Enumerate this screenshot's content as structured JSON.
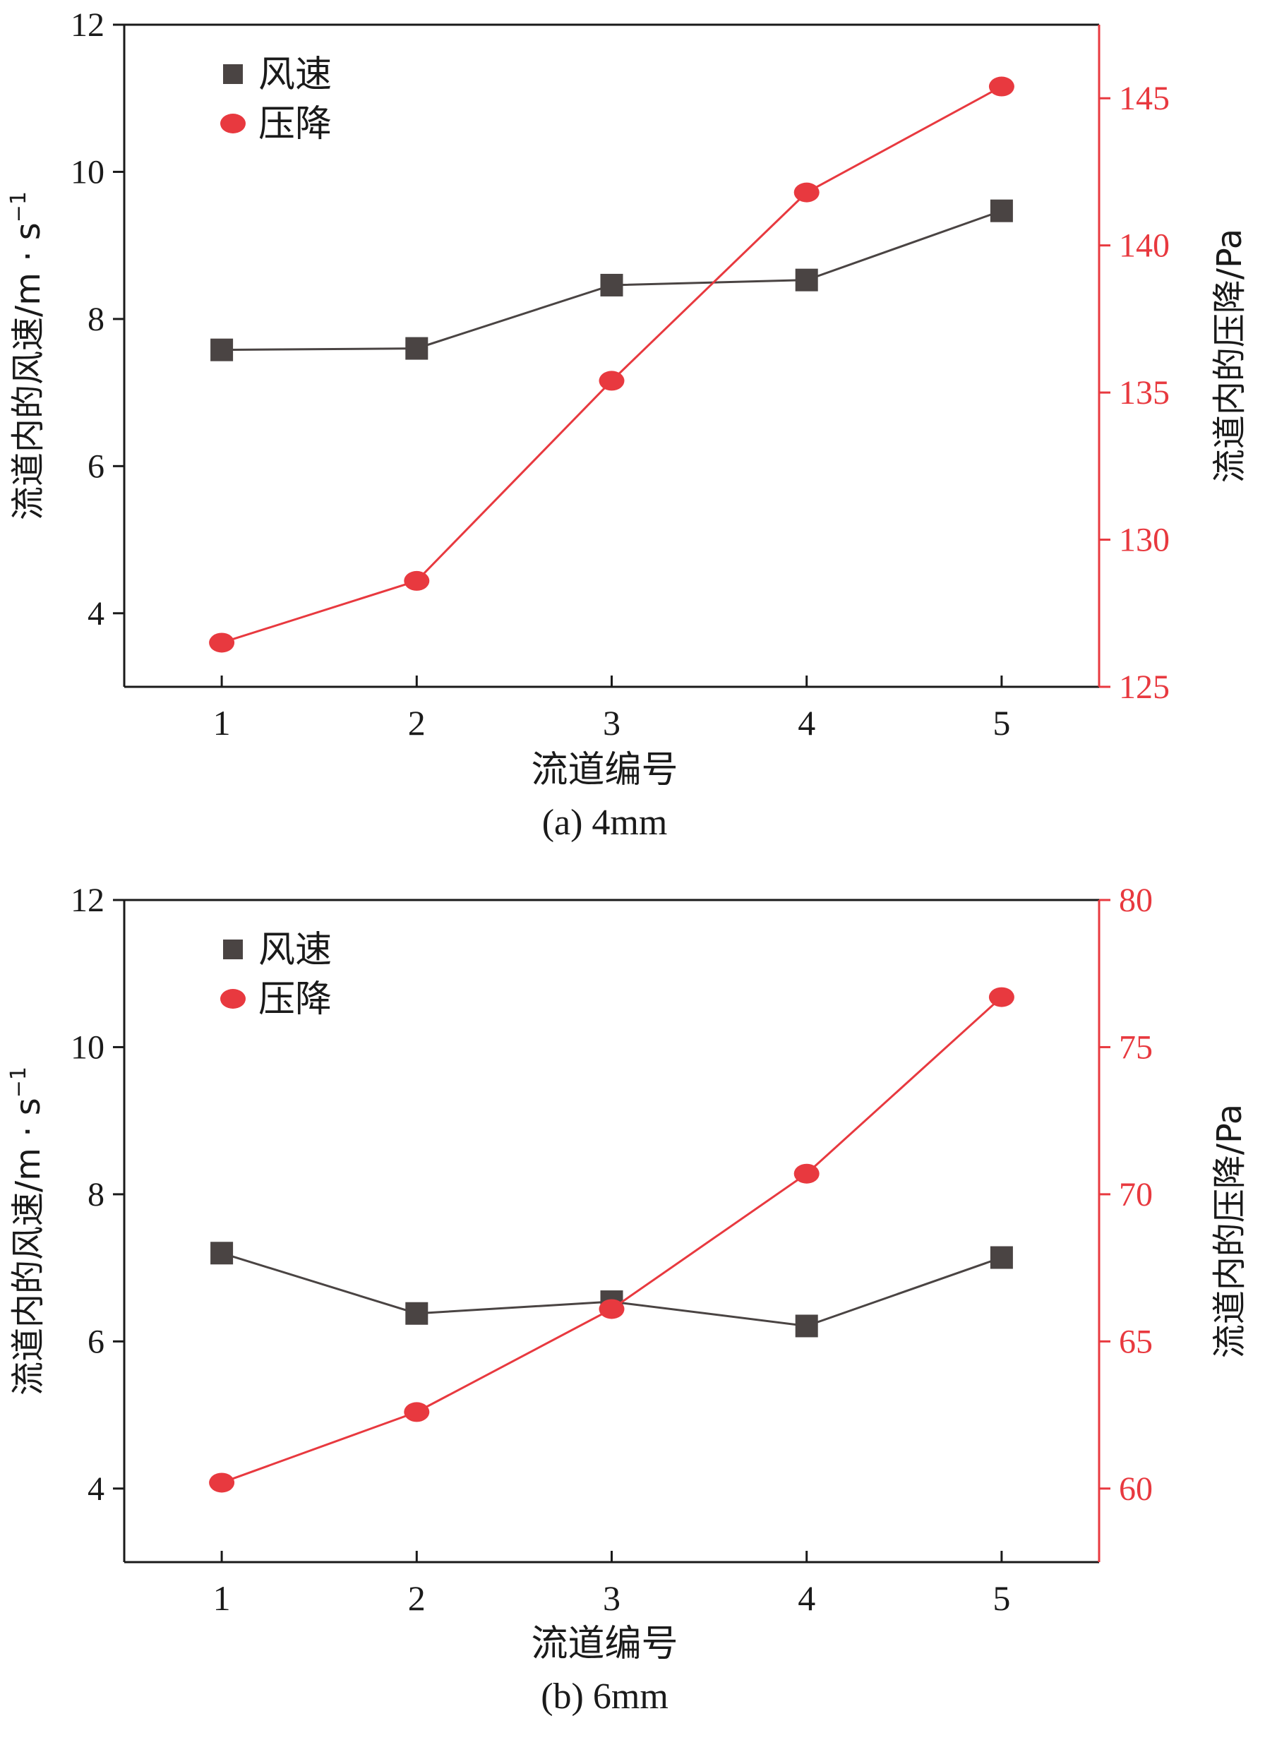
{
  "colors": {
    "speed": "#4a4443",
    "pressure": "#e8393f",
    "axis": "#1a1a1a"
  },
  "chart_data": [
    {
      "type": "line",
      "title": "(a) 4mm",
      "xlabel": "流道编号",
      "ylabel_left": "流道内的风速/m · s",
      "ylabel_left_sup": "−1",
      "ylabel_right": "流道内的压降/Pa",
      "categories": [
        "1",
        "2",
        "3",
        "4",
        "5"
      ],
      "ylim_left": [
        3,
        12
      ],
      "yticks_left": [
        4,
        6,
        8,
        10,
        12
      ],
      "ylim_right": [
        125,
        147.5
      ],
      "yticks_right": [
        125,
        130,
        135,
        140,
        145
      ],
      "series": [
        {
          "name": "风速",
          "axis": "left",
          "marker": "square",
          "values": [
            7.58,
            7.6,
            8.46,
            8.53,
            9.47
          ]
        },
        {
          "name": "压降",
          "axis": "right",
          "marker": "circle",
          "values": [
            126.5,
            128.6,
            135.4,
            141.8,
            145.4
          ]
        }
      ]
    },
    {
      "type": "line",
      "title": "(b) 6mm",
      "xlabel": "流道编号",
      "ylabel_left": "流道内的风速/m · s",
      "ylabel_left_sup": "−1",
      "ylabel_right": "流道内的压降/Pa",
      "categories": [
        "1",
        "2",
        "3",
        "4",
        "5"
      ],
      "ylim_left": [
        3,
        12
      ],
      "yticks_left": [
        4,
        6,
        8,
        10,
        12
      ],
      "ylim_right": [
        57.5,
        80
      ],
      "yticks_right": [
        60,
        65,
        70,
        75,
        80
      ],
      "series": [
        {
          "name": "风速",
          "axis": "left",
          "marker": "square",
          "values": [
            7.2,
            6.38,
            6.54,
            6.21,
            7.14
          ]
        },
        {
          "name": "压降",
          "axis": "right",
          "marker": "circle",
          "values": [
            60.2,
            62.6,
            66.1,
            70.7,
            76.7
          ]
        }
      ]
    }
  ]
}
